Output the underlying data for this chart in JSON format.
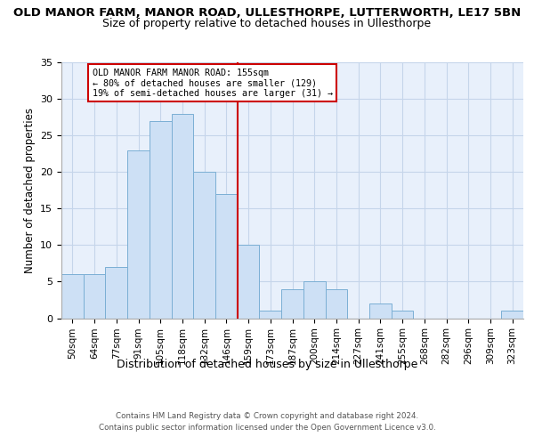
{
  "title": "OLD MANOR FARM, MANOR ROAD, ULLESTHORPE, LUTTERWORTH, LE17 5BN",
  "subtitle": "Size of property relative to detached houses in Ullesthorpe",
  "xlabel": "Distribution of detached houses by size in Ullesthorpe",
  "ylabel": "Number of detached properties",
  "bar_labels": [
    "50sqm",
    "64sqm",
    "77sqm",
    "91sqm",
    "105sqm",
    "118sqm",
    "132sqm",
    "146sqm",
    "159sqm",
    "173sqm",
    "187sqm",
    "200sqm",
    "214sqm",
    "227sqm",
    "241sqm",
    "255sqm",
    "268sqm",
    "282sqm",
    "296sqm",
    "309sqm",
    "323sqm"
  ],
  "bar_values": [
    6,
    6,
    7,
    23,
    27,
    28,
    20,
    17,
    10,
    1,
    4,
    5,
    4,
    0,
    2,
    1,
    0,
    0,
    0,
    0,
    1
  ],
  "bar_color": "#cde0f5",
  "bar_edge_color": "#7bafd4",
  "vline_x": 7.5,
  "vline_color": "#cc0000",
  "annotation_line1": "OLD MANOR FARM MANOR ROAD: 155sqm",
  "annotation_line2": "← 80% of detached houses are smaller (129)",
  "annotation_line3": "19% of semi-detached houses are larger (31) →",
  "annotation_box_color": "#ffffff",
  "annotation_box_edge": "#cc0000",
  "ylim": [
    0,
    35
  ],
  "yticks": [
    0,
    5,
    10,
    15,
    20,
    25,
    30,
    35
  ],
  "footer1": "Contains HM Land Registry data © Crown copyright and database right 2024.",
  "footer2": "Contains public sector information licensed under the Open Government Licence v3.0.",
  "bg_color": "#e8f0fb",
  "grid_color": "#c5d5ea"
}
